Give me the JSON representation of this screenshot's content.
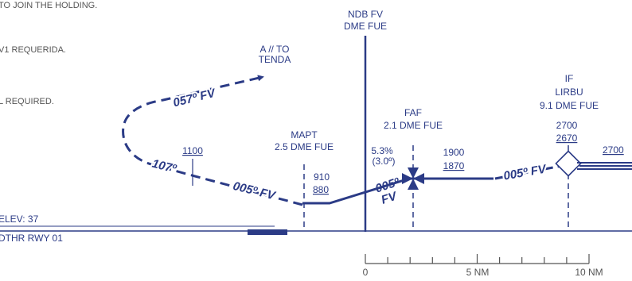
{
  "notes": {
    "line1": "TO JOIN THE HOLDING.",
    "line2": "V1 REQUERIDA.",
    "line3": "L REQUIRED."
  },
  "ndb": {
    "line1": "NDB FV",
    "line2": "DME FUE"
  },
  "missed": {
    "line1": "A // TO",
    "line2": "TENDA"
  },
  "course_057": "057º FV",
  "course_107": "107º",
  "course_005_left": "005º FV",
  "course_005_right": "005º FV",
  "final_course": {
    "line1": "005º",
    "line2": "FV"
  },
  "alt_1100": "1100",
  "mapt": {
    "line1": "MAPT",
    "line2": "2.5 DME FUE",
    "alt": "910",
    "alt_ref": "880"
  },
  "faf": {
    "line1": "FAF",
    "line2": "2.1 DME FUE"
  },
  "glide": {
    "line1": "5.3%",
    "line2": "(3.0º)"
  },
  "seg_alt": {
    "alt": "1900",
    "alt_ref": "1870"
  },
  "if": {
    "line1": "IF",
    "line2": "LIRBU",
    "line3": "9.1 DME FUE",
    "alt": "2700",
    "alt_ref": "2670"
  },
  "alt_right": "2700",
  "elev": "ELEV: 37",
  "dthr": "DTHR RWY 01",
  "scale": {
    "zero": "0",
    "five": "5 NM",
    "ten": "10 NM"
  },
  "colors": {
    "ink": "#2b3b86",
    "gray": "#555555"
  }
}
